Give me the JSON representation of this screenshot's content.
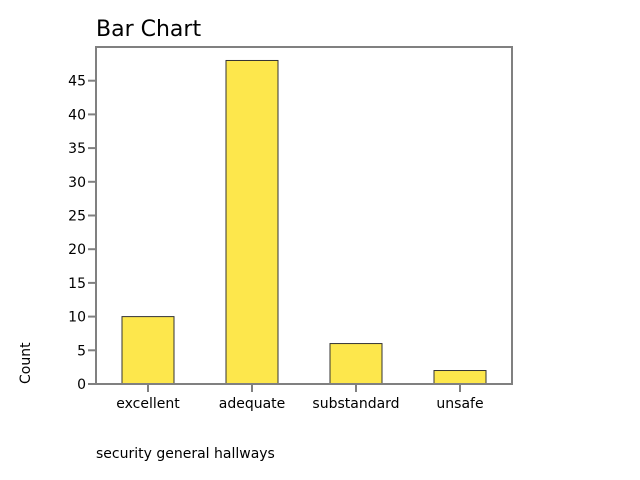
{
  "chart_data": {
    "type": "bar",
    "title": "Bar Chart",
    "xlabel": "security general hallways",
    "ylabel": "Count",
    "categories": [
      "excellent",
      "adequate",
      "substandard",
      "unsafe"
    ],
    "values": [
      10,
      48,
      6,
      2
    ],
    "ylim": [
      0,
      50
    ],
    "yticks": [
      0,
      5,
      10,
      15,
      20,
      25,
      30,
      35,
      40,
      45
    ],
    "grid": false,
    "legend": null,
    "bar_color": "#fde74c",
    "bar_edge_color": "#333333",
    "frame_color": "#808080"
  }
}
